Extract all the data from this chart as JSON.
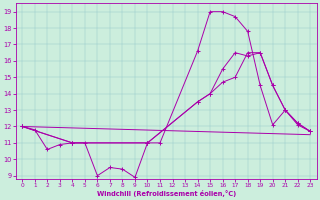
{
  "xlabel": "Windchill (Refroidissement éolien,°C)",
  "bg_color": "#cceedd",
  "line_color": "#aa00aa",
  "xlim": [
    -0.5,
    23.5
  ],
  "ylim": [
    8.8,
    19.5
  ],
  "xticks": [
    0,
    1,
    2,
    3,
    4,
    5,
    6,
    7,
    8,
    9,
    10,
    11,
    12,
    13,
    14,
    15,
    16,
    17,
    18,
    19,
    20,
    21,
    22,
    23
  ],
  "yticks": [
    9,
    10,
    11,
    12,
    13,
    14,
    15,
    16,
    17,
    18,
    19
  ],
  "series": [
    {
      "x": [
        0,
        1,
        2,
        3,
        4,
        5,
        6,
        7,
        8,
        9,
        10,
        11,
        14,
        15,
        16,
        17,
        18,
        19,
        20,
        21,
        22,
        23
      ],
      "y": [
        12,
        11.8,
        10.6,
        10.9,
        11.0,
        11.0,
        9.0,
        9.5,
        9.4,
        8.9,
        11.0,
        11.0,
        16.6,
        19.0,
        19.0,
        18.7,
        17.8,
        14.5,
        12.1,
        13.0,
        12.1,
        11.7
      ],
      "marker": true
    },
    {
      "x": [
        0,
        23
      ],
      "y": [
        12.0,
        11.5
      ],
      "marker": false
    },
    {
      "x": [
        0,
        4,
        10,
        14,
        15,
        16,
        17,
        18,
        19,
        20,
        21,
        22,
        23
      ],
      "y": [
        12,
        11.0,
        11.0,
        13.5,
        14.0,
        15.5,
        16.5,
        16.3,
        16.5,
        14.5,
        13.0,
        12.2,
        11.7
      ],
      "marker": true
    },
    {
      "x": [
        0,
        4,
        10,
        14,
        15,
        16,
        17,
        18,
        19,
        20,
        21,
        22,
        23
      ],
      "y": [
        12,
        11.0,
        11.0,
        13.5,
        14.0,
        14.7,
        15.0,
        16.5,
        16.5,
        14.5,
        13.0,
        12.2,
        11.7
      ],
      "marker": true
    }
  ]
}
